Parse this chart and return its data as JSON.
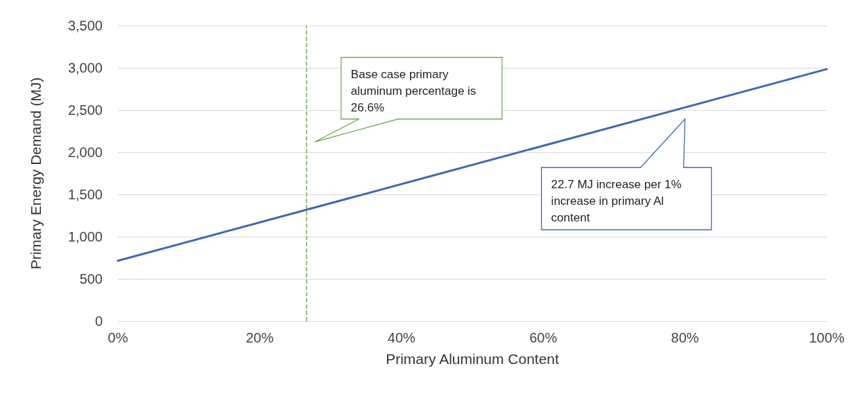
{
  "chart_data": {
    "type": "line",
    "xlabel": "Primary Aluminum Content",
    "ylabel": "Primary Energy Demand (MJ)",
    "x": [
      0,
      100
    ],
    "series": [
      {
        "color": "#4068b8",
        "values": [
          715,
          2985
        ]
      }
    ],
    "xlim": [
      0,
      100
    ],
    "xticks": [
      {
        "value": 0,
        "label": "0%"
      },
      {
        "value": 20,
        "label": "20%"
      },
      {
        "value": 40,
        "label": "40%"
      },
      {
        "value": 60,
        "label": "60%"
      },
      {
        "value": 80,
        "label": "80%"
      },
      {
        "value": 100,
        "label": "100%"
      }
    ],
    "ylim": [
      0,
      3500
    ],
    "yticks": [
      0,
      500,
      {
        "value": 1000,
        "label": "1,000"
      },
      {
        "value": 1500,
        "label": "1,500"
      },
      {
        "value": 2000,
        "label": "2,000"
      },
      {
        "value": 2500,
        "label": "2,500"
      },
      {
        "value": 3000,
        "label": "3,000"
      },
      {
        "value": 3500,
        "label": "3,500"
      }
    ],
    "grid": "y",
    "marker": "none",
    "line_style": "solid",
    "ref_lines": [
      {
        "axis": "x",
        "value": 26.6,
        "color": "#70ad47",
        "line_style": "dashed"
      }
    ],
    "annotations": [
      "Base case primary aluminum percentage is 26.6%",
      "22.7 MJ increase per 1% increase in primary Al content"
    ]
  }
}
